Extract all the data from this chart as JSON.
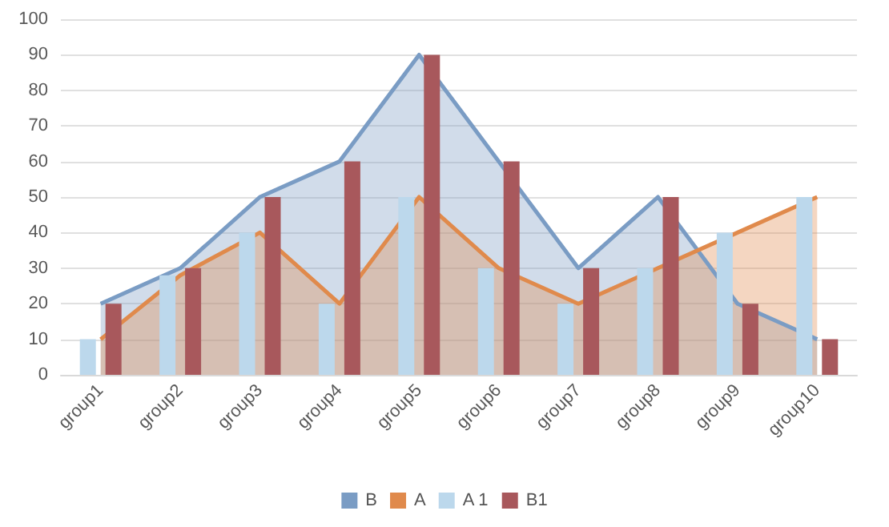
{
  "chart_data": {
    "type": "bar",
    "categories": [
      "group1",
      "group2",
      "group3",
      "group4",
      "group5",
      "group6",
      "group7",
      "group8",
      "group9",
      "group10"
    ],
    "series": [
      {
        "name": "B",
        "type": "area",
        "color": "#7a9cc4",
        "values": [
          20,
          30,
          50,
          60,
          90,
          60,
          30,
          50,
          20,
          10
        ]
      },
      {
        "name": "A",
        "type": "area",
        "color": "#e08a4c",
        "values": [
          10,
          28,
          40,
          20,
          50,
          30,
          20,
          30,
          40,
          50
        ]
      },
      {
        "name": "A 1",
        "color": "#bcd8ec",
        "values": [
          10,
          28,
          40,
          20,
          50,
          30,
          20,
          30,
          40,
          50
        ]
      },
      {
        "name": "B1",
        "color": "#a8585c",
        "values": [
          20,
          30,
          50,
          60,
          90,
          60,
          30,
          50,
          20,
          10
        ]
      }
    ],
    "ylim": [
      0,
      100
    ],
    "yticks": [
      0,
      10,
      20,
      30,
      40,
      50,
      60,
      70,
      80,
      90,
      100
    ],
    "grid": true,
    "legend": "bottom"
  }
}
